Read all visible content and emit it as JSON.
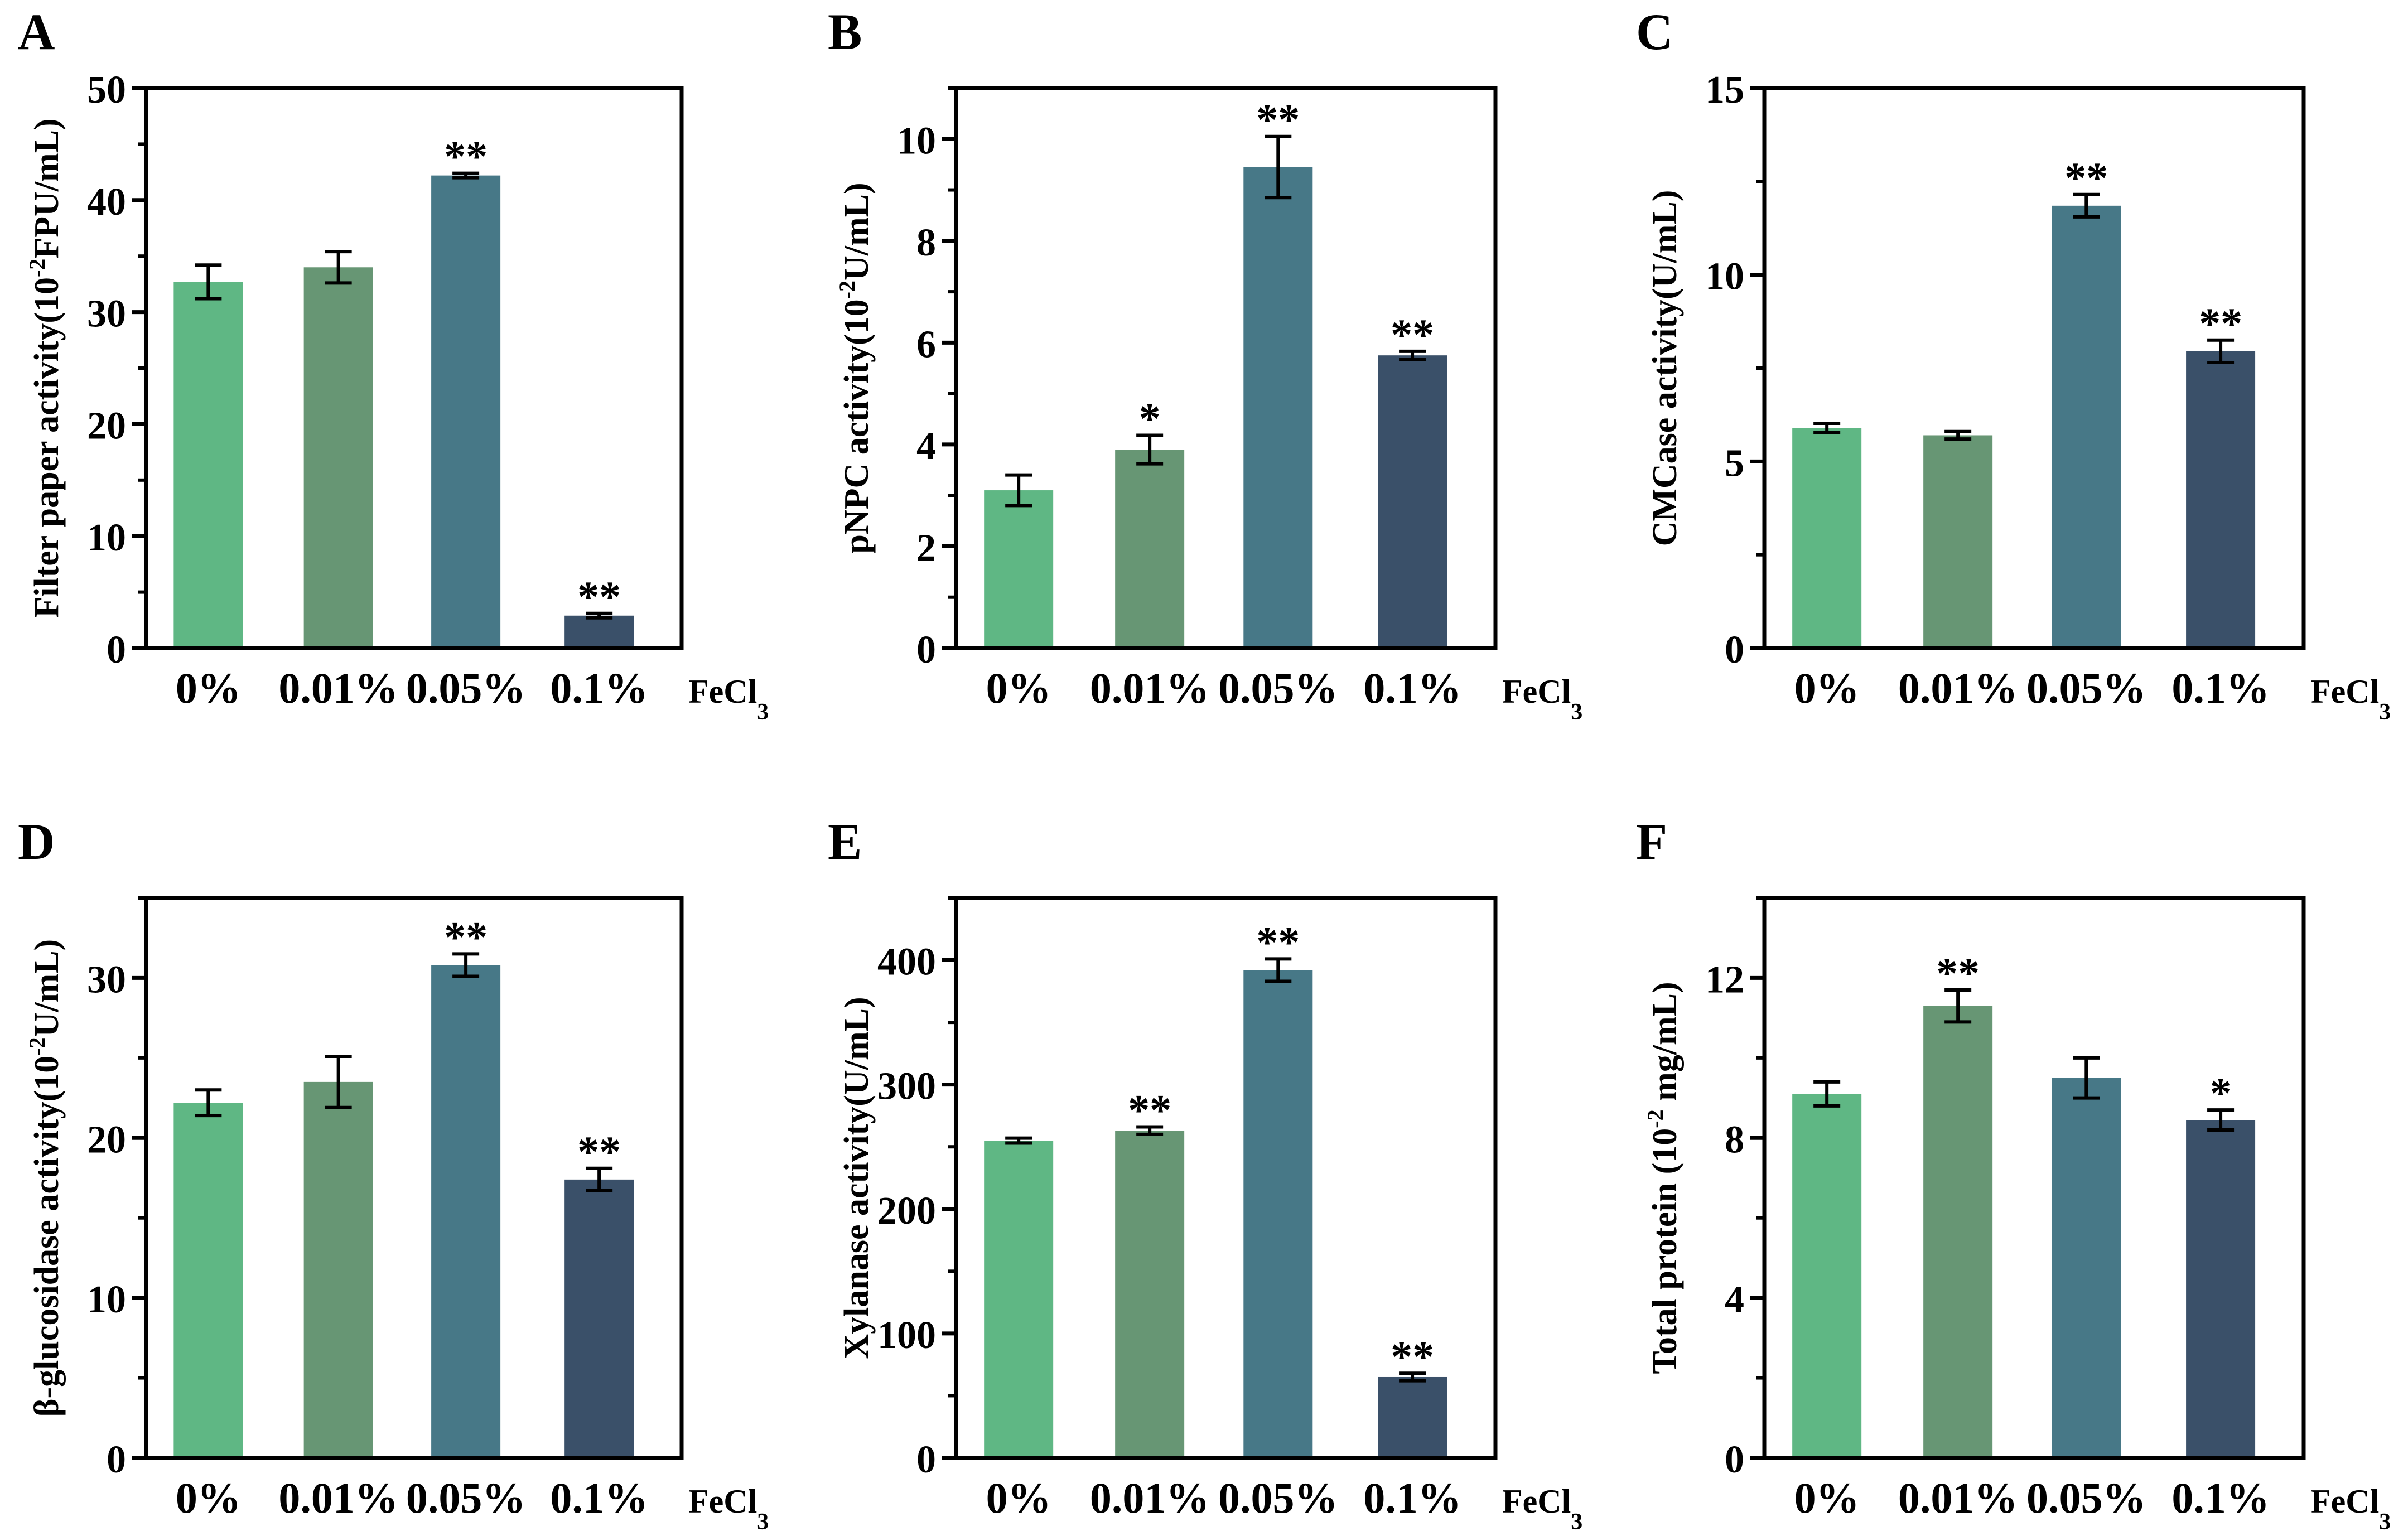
{
  "colors": [
    "#5fb784",
    "#679674",
    "#477887",
    "#3a5069"
  ],
  "chart_data": [
    {
      "type": "bar",
      "panel_label": "A",
      "categories": [
        "0%",
        "0.01%",
        "0.05%",
        "0.1%"
      ],
      "x_suffix": "FeCl",
      "x_suffix_sub": "3",
      "ylabel_pre": "Filter paper activity(10",
      "ylabel_sup": "-2",
      "ylabel_post": "FPU/mL)",
      "ylim": [
        0,
        50
      ],
      "yticks": [
        0,
        10,
        20,
        30,
        40,
        50
      ],
      "ytick_labels": [
        "0",
        "10",
        "20",
        "30",
        "40",
        "50"
      ],
      "minor_step": 5,
      "values": [
        32.7,
        34.0,
        42.2,
        2.9
      ],
      "errors": [
        1.5,
        1.4,
        0.2,
        0.2
      ],
      "significance": [
        "",
        "",
        "**",
        "**"
      ]
    },
    {
      "type": "bar",
      "panel_label": "B",
      "categories": [
        "0%",
        "0.01%",
        "0.05%",
        "0.1%"
      ],
      "x_suffix": "FeCl",
      "x_suffix_sub": "3",
      "ylabel_pre": "pNPC activity(10",
      "ylabel_sup": "-2",
      "ylabel_post": "U/mL)",
      "ylim": [
        0,
        11
      ],
      "yticks": [
        0,
        2,
        4,
        6,
        8,
        10
      ],
      "ytick_labels": [
        "0",
        "2",
        "4",
        "6",
        "8",
        "10"
      ],
      "minor_step": 1,
      "values": [
        3.1,
        3.9,
        9.45,
        5.75
      ],
      "errors": [
        0.3,
        0.28,
        0.6,
        0.08
      ],
      "significance": [
        "",
        "*",
        "**",
        "**"
      ]
    },
    {
      "type": "bar",
      "panel_label": "C",
      "categories": [
        "0%",
        "0.01%",
        "0.05%",
        "0.1%"
      ],
      "x_suffix": "FeCl",
      "x_suffix_sub": "3",
      "ylabel_pre": "CMCase activity(U/mL)",
      "ylabel_sup": "",
      "ylabel_post": "",
      "ylim": [
        0,
        15
      ],
      "yticks": [
        0,
        5,
        10,
        15
      ],
      "ytick_labels": [
        "0",
        "5",
        "10",
        "15"
      ],
      "minor_step": 2.5,
      "values": [
        5.9,
        5.7,
        11.85,
        7.95
      ],
      "errors": [
        0.12,
        0.1,
        0.3,
        0.3
      ],
      "significance": [
        "",
        "",
        "**",
        "**"
      ]
    },
    {
      "type": "bar",
      "panel_label": "D",
      "categories": [
        "0%",
        "0.01%",
        "0.05%",
        "0.1%"
      ],
      "x_suffix": "FeCl",
      "x_suffix_sub": "3",
      "ylabel_pre": "β-glucosidase activity(10",
      "ylabel_sup": "-2",
      "ylabel_post": "U/mL)",
      "ylim": [
        0,
        35
      ],
      "yticks": [
        0,
        10,
        20,
        30
      ],
      "ytick_labels": [
        "0",
        "10",
        "20",
        "30"
      ],
      "minor_step": 5,
      "values": [
        22.2,
        23.5,
        30.8,
        17.4
      ],
      "errors": [
        0.8,
        1.6,
        0.7,
        0.7
      ],
      "significance": [
        "",
        "",
        "**",
        "**"
      ]
    },
    {
      "type": "bar",
      "panel_label": "E",
      "categories": [
        "0%",
        "0.01%",
        "0.05%",
        "0.1%"
      ],
      "x_suffix": "FeCl",
      "x_suffix_sub": "3",
      "ylabel_pre": "Xylanase activity(U/mL)",
      "ylabel_sup": "",
      "ylabel_post": "",
      "ylim": [
        0,
        450
      ],
      "yticks": [
        0,
        100,
        200,
        300,
        400
      ],
      "ytick_labels": [
        "0",
        "100",
        "200",
        "300",
        "400"
      ],
      "minor_step": 50,
      "values": [
        255,
        263,
        392,
        65
      ],
      "errors": [
        2,
        3,
        9,
        3
      ],
      "significance": [
        "",
        "**",
        "**",
        "**"
      ]
    },
    {
      "type": "bar",
      "panel_label": "F",
      "categories": [
        "0%",
        "0.01%",
        "0.05%",
        "0.1%"
      ],
      "x_suffix": "FeCl",
      "x_suffix_sub": "3",
      "ylabel_pre": "Total protein (10",
      "ylabel_sup": "-2",
      "ylabel_post": " mg/mL)",
      "ylim": [
        0,
        14
      ],
      "yticks": [
        0,
        4,
        8,
        12
      ],
      "ytick_labels": [
        "0",
        "4",
        "8",
        "12"
      ],
      "minor_step": 2,
      "values": [
        9.1,
        11.3,
        9.5,
        8.45
      ],
      "errors": [
        0.3,
        0.4,
        0.5,
        0.25
      ],
      "significance": [
        "",
        "**",
        "",
        "*"
      ]
    }
  ]
}
